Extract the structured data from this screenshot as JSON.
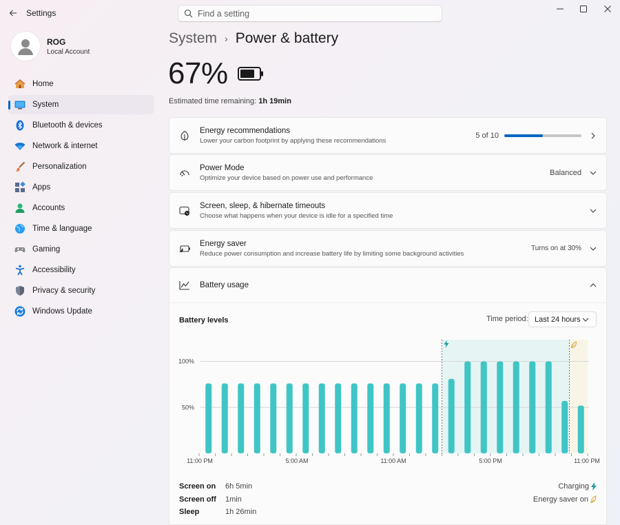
{
  "window": {
    "title": "Settings"
  },
  "search": {
    "placeholder": "Find a setting"
  },
  "profile": {
    "name": "ROG",
    "subtitle": "Local Account"
  },
  "sidebar": {
    "items": [
      {
        "label": "Home",
        "icon": "home-icon"
      },
      {
        "label": "System",
        "icon": "monitor-icon",
        "active": true
      },
      {
        "label": "Bluetooth & devices",
        "icon": "bluetooth-icon"
      },
      {
        "label": "Network & internet",
        "icon": "wifi-icon"
      },
      {
        "label": "Personalization",
        "icon": "brush-icon"
      },
      {
        "label": "Apps",
        "icon": "apps-icon"
      },
      {
        "label": "Accounts",
        "icon": "person-icon"
      },
      {
        "label": "Time & language",
        "icon": "globe-icon"
      },
      {
        "label": "Gaming",
        "icon": "gamepad-icon"
      },
      {
        "label": "Accessibility",
        "icon": "accessibility-icon"
      },
      {
        "label": "Privacy & security",
        "icon": "shield-icon"
      },
      {
        "label": "Windows Update",
        "icon": "update-icon"
      }
    ]
  },
  "breadcrumb": {
    "parent": "System",
    "separator": "›",
    "current": "Power & battery"
  },
  "battery": {
    "percent": "67%",
    "estimated_label": "Estimated time remaining:",
    "estimated_value": "1h 19min"
  },
  "cards": {
    "recommendations": {
      "title": "Energy recommendations",
      "desc": "Lower your carbon footprint by applying these recommendations",
      "progress_text": "5 of 10",
      "progress": 0.5
    },
    "power_mode": {
      "title": "Power Mode",
      "desc": "Optimize your device based on power use and performance",
      "value": "Balanced"
    },
    "timeouts": {
      "title": "Screen, sleep, & hibernate timeouts",
      "desc": "Choose what happens when your device is idle for a specified time"
    },
    "energy_saver": {
      "title": "Energy saver",
      "desc": "Reduce power consumption and increase battery life by limiting some background activities",
      "value": "Turns on at 30%"
    },
    "usage": {
      "title": "Battery usage"
    }
  },
  "usage": {
    "levels_title": "Battery levels",
    "period_label": "Time period:",
    "period_value": "Last 24 hours",
    "stats": [
      {
        "label": "Screen on",
        "value": "6h 5min"
      },
      {
        "label": "Screen off",
        "value": "1min"
      },
      {
        "label": "Sleep",
        "value": "1h 26min"
      }
    ],
    "legend": {
      "charging": "Charging",
      "saver": "Energy saver on"
    }
  },
  "colors": {
    "accent": "#0067c0",
    "bar": "#3fc5c5",
    "charging": "#1a9ca0",
    "saver": "#d9a43a"
  },
  "chart_data": {
    "type": "bar",
    "x_tick_labels": [
      "11:00 PM",
      "5:00 AM",
      "11:00 AM",
      "5:00 PM",
      "11:00 PM"
    ],
    "y_tick_labels": [
      "100%",
      "50%"
    ],
    "ylim": [
      0,
      100
    ],
    "values": [
      76,
      76,
      76,
      76,
      76,
      76,
      76,
      76,
      76,
      76,
      76,
      76,
      76,
      76,
      76,
      81,
      100,
      100,
      100,
      100,
      100,
      100,
      57,
      52
    ],
    "charging_interval": [
      15,
      22
    ],
    "energy_saver_interval": [
      23,
      23
    ]
  }
}
